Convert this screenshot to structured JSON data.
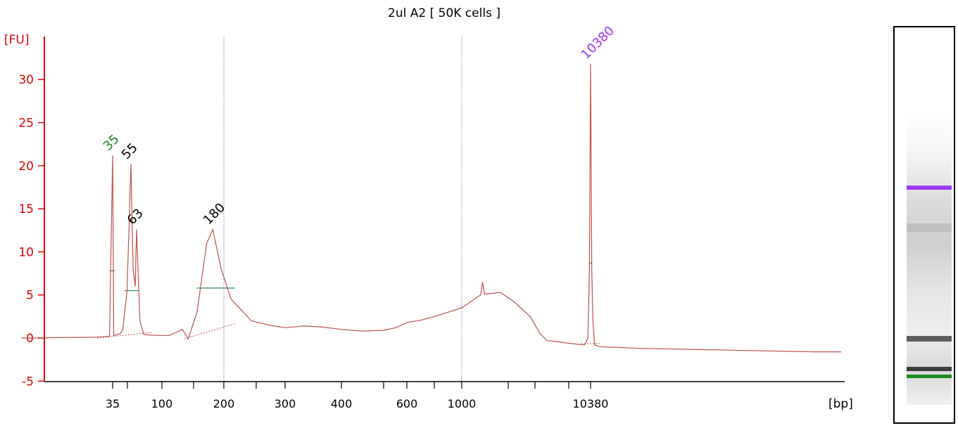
{
  "chart_data": {
    "type": "line",
    "title": "2ul A2  [ 50K cells ]",
    "ylabel": "[FU]",
    "xlabel": "[bp]",
    "ylim": [
      -5,
      35
    ],
    "yticks": [
      -5,
      0,
      5,
      10,
      15,
      20,
      25,
      30
    ],
    "xtick_labels": [
      "35",
      "100",
      "200",
      "300",
      "400",
      "600",
      "1000",
      "10380"
    ],
    "line_color": "#c0504d",
    "axis_color": "#e00000",
    "marker_lines_bp": [
      200,
      1000
    ],
    "peak_labels": [
      {
        "text": "35",
        "x_bp": 35,
        "y": 21.2,
        "color": "#1a7f1a"
      },
      {
        "text": "55",
        "x_bp": 55,
        "y": 20.2,
        "color": "#000000"
      },
      {
        "text": "63",
        "x_bp": 63,
        "y": 12.6,
        "color": "#000000"
      },
      {
        "text": "180",
        "x_bp": 180,
        "y": 12.6,
        "color": "#000000"
      },
      {
        "text": "10380",
        "x_bp": 10380,
        "y": 31.8,
        "color": "#9b30ff"
      }
    ],
    "series": [
      {
        "points": [
          [
            15,
            0
          ],
          [
            30,
            0.1
          ],
          [
            34,
            0.2
          ],
          [
            35,
            21.2
          ],
          [
            36,
            0.3
          ],
          [
            42,
            0.5
          ],
          [
            45,
            1.0
          ],
          [
            50,
            5.5
          ],
          [
            55,
            20.2
          ],
          [
            58,
            8.0
          ],
          [
            61,
            6.0
          ],
          [
            63,
            12.6
          ],
          [
            67,
            2.0
          ],
          [
            72,
            0.4
          ],
          [
            90,
            0.3
          ],
          [
            110,
            0.3
          ],
          [
            130,
            1.0
          ],
          [
            140,
            -0.1
          ],
          [
            155,
            3.0
          ],
          [
            170,
            11.0
          ],
          [
            180,
            12.6
          ],
          [
            195,
            8.0
          ],
          [
            210,
            4.5
          ],
          [
            240,
            2.0
          ],
          [
            270,
            1.5
          ],
          [
            300,
            1.2
          ],
          [
            330,
            1.4
          ],
          [
            360,
            1.3
          ],
          [
            400,
            1.0
          ],
          [
            450,
            0.8
          ],
          [
            500,
            0.9
          ],
          [
            550,
            1.2
          ],
          [
            600,
            1.8
          ],
          [
            700,
            2.1
          ],
          [
            800,
            2.5
          ],
          [
            1000,
            3.5
          ],
          [
            1150,
            4.8
          ],
          [
            1180,
            5.0
          ],
          [
            1200,
            6.5
          ],
          [
            1220,
            5.1
          ],
          [
            1400,
            5.3
          ],
          [
            1600,
            4.2
          ],
          [
            1900,
            2.5
          ],
          [
            2300,
            0.5
          ],
          [
            2800,
            -0.3
          ],
          [
            3500,
            -0.4
          ],
          [
            5000,
            -0.6
          ],
          [
            8500,
            -0.8
          ],
          [
            9500,
            0
          ],
          [
            10000,
            8.0
          ],
          [
            10380,
            31.8
          ],
          [
            10700,
            8.0
          ],
          [
            11000,
            2.0
          ],
          [
            11500,
            -0.8
          ],
          [
            13000,
            -1.0
          ],
          [
            20000,
            -1.2
          ],
          [
            40000,
            -1.4
          ],
          [
            80000,
            -1.6
          ],
          [
            99000,
            -1.6
          ]
        ]
      }
    ],
    "fit_lines": [
      {
        "x_bp": [
          34,
          37
        ],
        "y": 7.8
      },
      {
        "x_bp": [
          47,
          66
        ],
        "y": 5.5
      },
      {
        "x_bp": [
          155,
          215
        ],
        "y": 5.8
      },
      {
        "x_bp": [
          9800,
          10800
        ],
        "y": 8.7
      }
    ],
    "gel_lane": {
      "bands": [
        {
          "name": "upper-marker",
          "color": "#9b30ff"
        },
        {
          "name": "smear-high",
          "color": "#9a9a9a"
        },
        {
          "name": "band-dark",
          "color": "#555555"
        },
        {
          "name": "band-low",
          "color": "#333333"
        },
        {
          "name": "lower-marker",
          "color": "#118811"
        }
      ]
    }
  }
}
